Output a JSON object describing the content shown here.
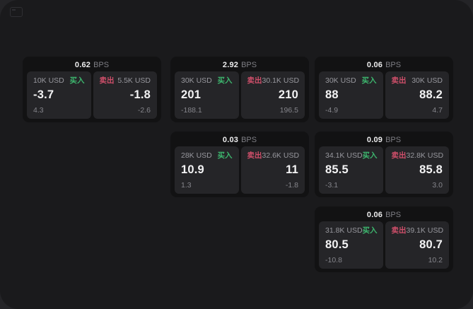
{
  "labels": {
    "bps_unit": "BPS",
    "buy": "买入",
    "sell": "卖出"
  },
  "colors": {
    "page_background": "#242427",
    "window_background": "#1a1a1c",
    "card_background": "#121213",
    "panel_background": "#252528",
    "text_primary": "#f3f3f4",
    "text_muted": "#98989e",
    "buy_green": "#3db66e",
    "sell_red": "#cf4f6a"
  },
  "icons": {
    "top_left": "app-window-icon"
  },
  "cards": [
    {
      "bps": "0.62",
      "buy": {
        "amount": "10K USD",
        "main": "-3.7",
        "sub": "4.3"
      },
      "sell": {
        "amount": "5.5K USD",
        "main": "-1.8",
        "sub": "-2.6"
      }
    },
    {
      "bps": "2.92",
      "buy": {
        "amount": "30K USD",
        "main": "201",
        "sub": "-188.1"
      },
      "sell": {
        "amount": "30.1K USD",
        "main": "210",
        "sub": "196.5"
      }
    },
    {
      "bps": "0.06",
      "buy": {
        "amount": "30K USD",
        "main": "88",
        "sub": "-4.9"
      },
      "sell": {
        "amount": "30K USD",
        "main": "88.2",
        "sub": "4.7"
      }
    },
    {
      "bps": "0.03",
      "buy": {
        "amount": "28K USD",
        "main": "10.9",
        "sub": "1.3"
      },
      "sell": {
        "amount": "32.6K USD",
        "main": "11",
        "sub": "-1.8"
      }
    },
    {
      "bps": "0.09",
      "buy": {
        "amount": "34.1K USD",
        "main": "85.5",
        "sub": "-3.1"
      },
      "sell": {
        "amount": "32.8K USD",
        "main": "85.8",
        "sub": "3.0"
      }
    },
    {
      "bps": "0.06",
      "buy": {
        "amount": "31.8K USD",
        "main": "80.5",
        "sub": "-10.8"
      },
      "sell": {
        "amount": "39.1K USD",
        "main": "80.7",
        "sub": "10.2"
      }
    }
  ]
}
